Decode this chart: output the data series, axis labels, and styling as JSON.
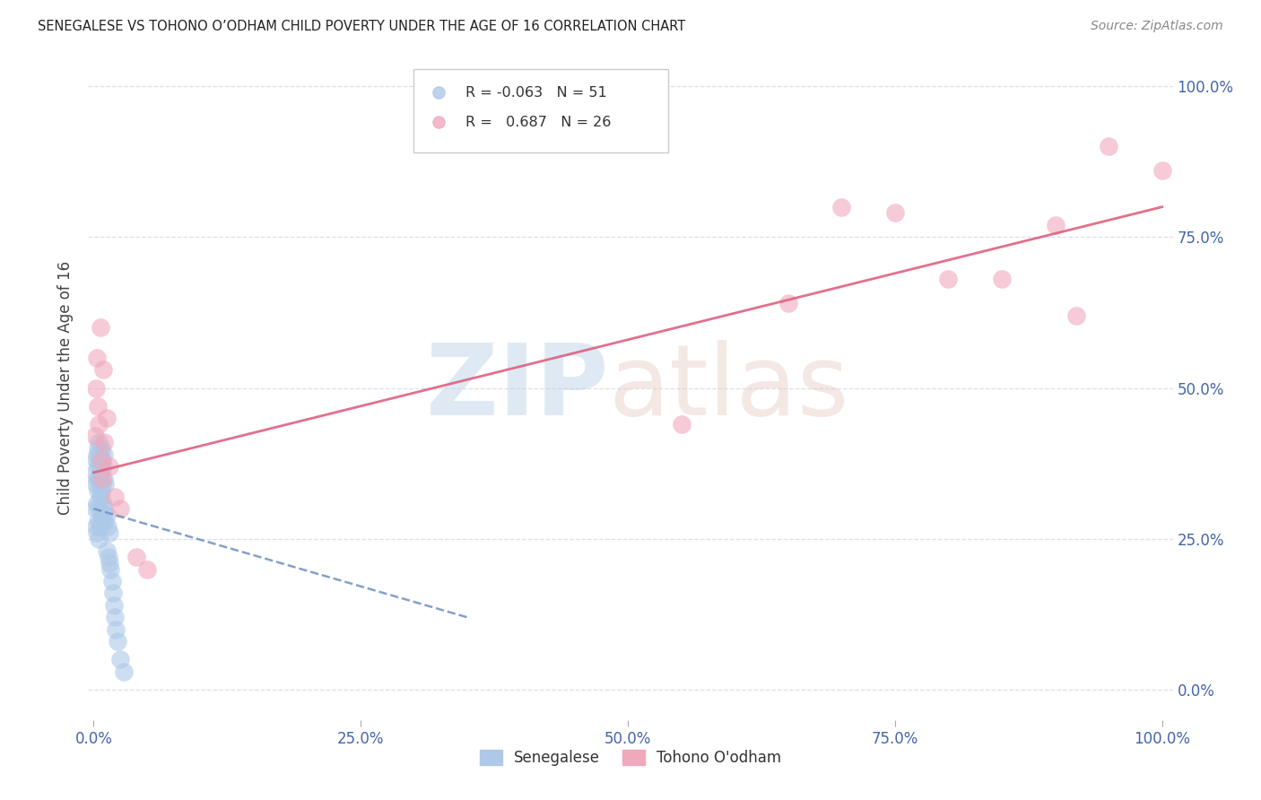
{
  "title": "SENEGALESE VS TOHONO O’ODHAM CHILD POVERTY UNDER THE AGE OF 16 CORRELATION CHART",
  "source": "Source: ZipAtlas.com",
  "ylabel": "Child Poverty Under the Age of 16",
  "senegalese_label": "Senegalese",
  "tohono_label": "Tohono O'odham",
  "legend_R1": "-0.063",
  "legend_N1": "51",
  "legend_R2": "0.687",
  "legend_N2": "26",
  "senegalese_color": "#adc8e8",
  "tohono_color": "#f0a8bc",
  "blue_line_color": "#7090c0",
  "pink_line_color": "#e06080",
  "axis_color": "#4466aa",
  "grid_color": "#ddddee",
  "title_color": "#222222",
  "source_color": "#888888",
  "senegalese_x": [
    0.001,
    0.001,
    0.002,
    0.002,
    0.002,
    0.003,
    0.003,
    0.003,
    0.003,
    0.004,
    0.004,
    0.004,
    0.004,
    0.005,
    0.005,
    0.005,
    0.005,
    0.005,
    0.006,
    0.006,
    0.006,
    0.006,
    0.007,
    0.007,
    0.007,
    0.007,
    0.008,
    0.008,
    0.008,
    0.009,
    0.009,
    0.01,
    0.01,
    0.01,
    0.011,
    0.011,
    0.012,
    0.012,
    0.013,
    0.014,
    0.015,
    0.015,
    0.016,
    0.017,
    0.018,
    0.019,
    0.02,
    0.021,
    0.022,
    0.025,
    0.028
  ],
  "senegalese_y": [
    0.36,
    0.3,
    0.38,
    0.34,
    0.27,
    0.39,
    0.35,
    0.31,
    0.26,
    0.4,
    0.37,
    0.33,
    0.28,
    0.41,
    0.38,
    0.35,
    0.3,
    0.25,
    0.39,
    0.36,
    0.32,
    0.27,
    0.4,
    0.37,
    0.33,
    0.28,
    0.38,
    0.34,
    0.29,
    0.37,
    0.31,
    0.39,
    0.35,
    0.3,
    0.34,
    0.28,
    0.29,
    0.23,
    0.27,
    0.22,
    0.26,
    0.21,
    0.2,
    0.18,
    0.16,
    0.14,
    0.12,
    0.1,
    0.08,
    0.05,
    0.03
  ],
  "tohono_x": [
    0.001,
    0.002,
    0.003,
    0.004,
    0.005,
    0.006,
    0.007,
    0.008,
    0.009,
    0.01,
    0.012,
    0.015,
    0.02,
    0.025,
    0.04,
    0.05,
    0.55,
    0.65,
    0.7,
    0.75,
    0.8,
    0.85,
    0.9,
    0.92,
    0.95,
    1.0
  ],
  "tohono_y": [
    0.42,
    0.5,
    0.55,
    0.47,
    0.44,
    0.6,
    0.38,
    0.35,
    0.53,
    0.41,
    0.45,
    0.37,
    0.32,
    0.3,
    0.22,
    0.2,
    0.44,
    0.64,
    0.8,
    0.79,
    0.68,
    0.68,
    0.77,
    0.62,
    0.9,
    0.86
  ],
  "blue_line_x": [
    0.0,
    0.35
  ],
  "blue_line_y": [
    0.3,
    0.12
  ],
  "pink_line_x": [
    0.0,
    1.0
  ],
  "pink_line_y": [
    0.36,
    0.8
  ],
  "xlim": [
    -0.005,
    1.01
  ],
  "ylim": [
    -0.05,
    1.05
  ],
  "xticks": [
    0.0,
    0.25,
    0.5,
    0.75,
    1.0
  ],
  "yticks": [
    0.0,
    0.25,
    0.5,
    0.75,
    1.0
  ],
  "xticklabels": [
    "0.0%",
    "25.0%",
    "50.0%",
    "75.0%",
    "100.0%"
  ],
  "yticklabels": [
    "0.0%",
    "25.0%",
    "50.0%",
    "75.0%",
    "100.0%"
  ]
}
